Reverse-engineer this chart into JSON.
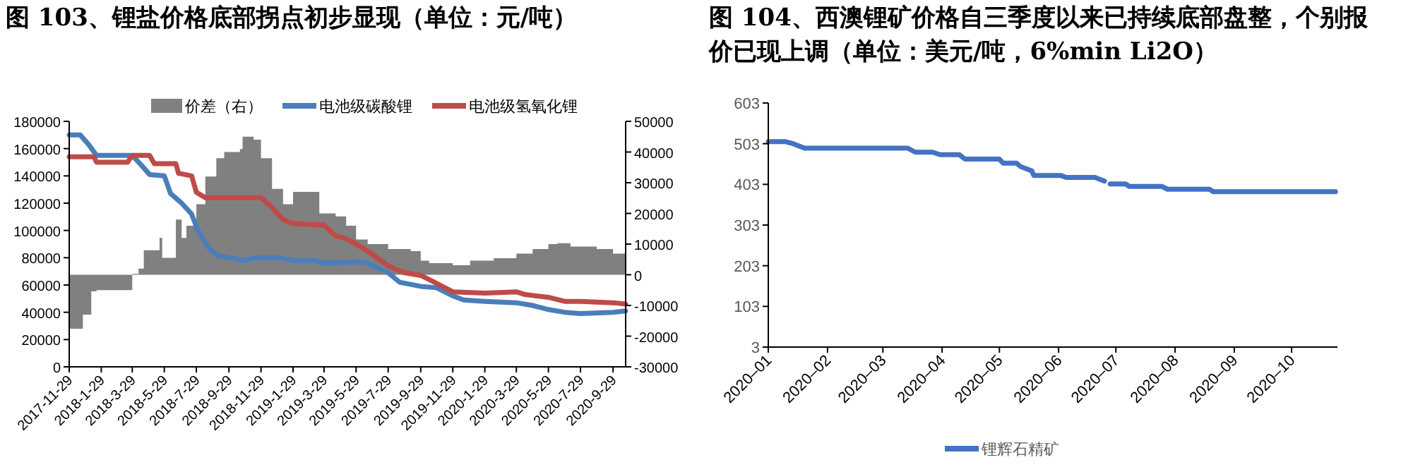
{
  "chart_data": [
    {
      "type": "line",
      "title": "图 103、锂盐价格底部拐点初步显现（单位：元/吨）",
      "legend": "top",
      "xlim": [
        "2017-11-29",
        "2020-10-23"
      ],
      "xticks": [
        {
          "value": "2017-11-29",
          "label": "2017-11-29"
        },
        {
          "value": "2018-01-29",
          "label": "2018-1-29"
        },
        {
          "value": "2018-03-29",
          "label": "2018-3-29"
        },
        {
          "value": "2018-05-29",
          "label": "2018-5-29"
        },
        {
          "value": "2018-07-29",
          "label": "2018-7-29"
        },
        {
          "value": "2018-09-29",
          "label": "2018-9-29"
        },
        {
          "value": "2018-11-29",
          "label": "2018-11-29"
        },
        {
          "value": "2019-01-29",
          "label": "2019-1-29"
        },
        {
          "value": "2019-03-29",
          "label": "2019-3-29"
        },
        {
          "value": "2019-05-29",
          "label": "2019-5-29"
        },
        {
          "value": "2019-07-29",
          "label": "2019-7-29"
        },
        {
          "value": "2019-09-29",
          "label": "2019-9-29"
        },
        {
          "value": "2019-11-29",
          "label": "2019-11-29"
        },
        {
          "value": "2020-01-29",
          "label": "2020-1-29"
        },
        {
          "value": "2020-03-29",
          "label": "2020-3-29"
        },
        {
          "value": "2020-05-29",
          "label": "2020-5-29"
        },
        {
          "value": "2020-07-29",
          "label": "2020-7-29"
        },
        {
          "value": "2020-09-29",
          "label": "2020-9-29"
        }
      ],
      "ylim": [
        0,
        180000
      ],
      "yticks": [
        0,
        20000,
        40000,
        60000,
        80000,
        100000,
        120000,
        140000,
        160000,
        180000
      ],
      "y2lim": [
        -30000,
        50000
      ],
      "y2ticks": [
        -30000,
        -20000,
        -10000,
        0,
        10000,
        20000,
        30000,
        40000,
        50000
      ],
      "series": [
        {
          "name": "价差（右）",
          "type": "area",
          "axis": "y2",
          "color": "#808080",
          "x": [
            "2017-11-29",
            "2017-12-10",
            "2017-12-25",
            "2018-01-10",
            "2018-01-20",
            "2018-03-28",
            "2018-03-29",
            "2018-04-10",
            "2018-04-20",
            "2018-05-20",
            "2018-05-25",
            "2018-06-10",
            "2018-06-20",
            "2018-07-01",
            "2018-07-10",
            "2018-07-29",
            "2018-08-15",
            "2018-09-05",
            "2018-09-20",
            "2018-10-20",
            "2018-10-25",
            "2018-11-15",
            "2018-11-29",
            "2018-12-20",
            "2019-01-10",
            "2019-01-29",
            "2019-03-10",
            "2019-03-20",
            "2019-04-20",
            "2019-05-10",
            "2019-05-29",
            "2019-06-20",
            "2019-07-29",
            "2019-08-29",
            "2019-09-10",
            "2019-09-29",
            "2019-10-15",
            "2019-11-29",
            "2020-01-01",
            "2020-02-15",
            "2020-03-29",
            "2020-04-29",
            "2020-05-29",
            "2020-06-15",
            "2020-07-10",
            "2020-08-29",
            "2020-09-29",
            "2020-10-23"
          ],
          "values": [
            -17600,
            -17600,
            -13000,
            -5400,
            -5000,
            -5000,
            300,
            2000,
            8000,
            12000,
            5500,
            5500,
            18000,
            12000,
            16000,
            23000,
            32000,
            38000,
            40000,
            41000,
            45000,
            44000,
            38000,
            28000,
            23000,
            27000,
            27000,
            20000,
            19000,
            16000,
            11500,
            10000,
            8400,
            8400,
            7700,
            4600,
            3800,
            3100,
            4600,
            5400,
            6900,
            8400,
            10000,
            10300,
            9200,
            8400,
            6900,
            5700
          ]
        },
        {
          "name": "电池级碳酸锂",
          "type": "line",
          "color": "#4a7ebb",
          "x": [
            "2017-11-29",
            "2017-12-20",
            "2018-01-05",
            "2018-01-20",
            "2018-03-29",
            "2018-04-15",
            "2018-05-01",
            "2018-05-29",
            "2018-06-10",
            "2018-07-01",
            "2018-07-20",
            "2018-08-01",
            "2018-08-20",
            "2018-09-05",
            "2018-10-01",
            "2018-10-30",
            "2018-11-15",
            "2019-01-01",
            "2019-02-01",
            "2019-03-10",
            "2019-03-29",
            "2019-05-29",
            "2019-06-20",
            "2019-07-29",
            "2019-08-20",
            "2019-09-29",
            "2019-10-29",
            "2019-11-29",
            "2019-12-20",
            "2020-01-29",
            "2020-03-29",
            "2020-04-29",
            "2020-05-29",
            "2020-06-29",
            "2020-07-29",
            "2020-09-29",
            "2020-10-23"
          ],
          "values": [
            170000,
            170000,
            163000,
            155000,
            155000,
            148000,
            141000,
            140000,
            127000,
            120000,
            112000,
            100000,
            88000,
            82000,
            80000,
            78000,
            80000,
            80000,
            78000,
            78000,
            76000,
            77000,
            76000,
            69000,
            62000,
            59000,
            58000,
            52000,
            49000,
            48000,
            47000,
            45000,
            42000,
            40000,
            39000,
            40000,
            41000
          ]
        },
        {
          "name": "电池级氢氧化锂",
          "type": "line",
          "color": "#be4b48",
          "x": [
            "2017-11-29",
            "2018-01-15",
            "2018-01-20",
            "2018-03-20",
            "2018-03-29",
            "2018-05-01",
            "2018-05-10",
            "2018-06-20",
            "2018-06-25",
            "2018-07-20",
            "2018-07-29",
            "2018-08-15",
            "2018-11-29",
            "2018-12-20",
            "2019-01-10",
            "2019-01-29",
            "2019-03-29",
            "2019-04-20",
            "2019-05-10",
            "2019-05-29",
            "2019-06-20",
            "2019-07-29",
            "2019-08-29",
            "2019-09-29",
            "2019-10-20",
            "2019-11-29",
            "2020-01-29",
            "2020-03-29",
            "2020-04-15",
            "2020-05-29",
            "2020-06-29",
            "2020-07-29",
            "2020-09-29",
            "2020-10-23"
          ],
          "values": [
            154000,
            154000,
            150000,
            150000,
            155000,
            155000,
            149000,
            149000,
            142000,
            140000,
            128000,
            124000,
            124000,
            117000,
            108000,
            105000,
            104000,
            96000,
            94000,
            90000,
            85000,
            74000,
            69000,
            67000,
            63000,
            55000,
            54000,
            55000,
            53000,
            51000,
            48000,
            48000,
            47000,
            46000
          ]
        }
      ]
    },
    {
      "type": "line",
      "title": "图 104、西澳锂矿价格自三季度以来已持续底部盘整，个别报价已现上调（单位：美元/吨，6%min Li2O）",
      "legend": "bottom",
      "xlim": [
        "2020-01-01",
        "2020-10-25"
      ],
      "xticks": [
        {
          "value": "2020-01",
          "label": "2020–01"
        },
        {
          "value": "2020-02",
          "label": "2020–02"
        },
        {
          "value": "2020-03",
          "label": "2020–03"
        },
        {
          "value": "2020-04",
          "label": "2020–04"
        },
        {
          "value": "2020-05",
          "label": "2020–05"
        },
        {
          "value": "2020-06",
          "label": "2020–06"
        },
        {
          "value": "2020-07",
          "label": "2020–07"
        },
        {
          "value": "2020-08",
          "label": "2020–08"
        },
        {
          "value": "2020-09",
          "label": "2020–09"
        },
        {
          "value": "2020-10",
          "label": "2020–10"
        }
      ],
      "ylim": [
        3,
        603
      ],
      "yticks": [
        3,
        103,
        203,
        303,
        403,
        503,
        603
      ],
      "series": [
        {
          "name": "锂辉石精矿",
          "color": "#4472c4",
          "x": [
            "2020-01-01",
            "2020-01-10",
            "2020-01-14",
            "2020-01-20",
            "2020-03-14",
            "2020-03-18",
            "2020-03-27",
            "2020-03-31",
            "2020-04-10",
            "2020-04-13",
            "2020-05-01",
            "2020-05-03",
            "2020-05-10",
            "2020-05-12",
            "2020-05-18",
            "2020-05-19",
            "2020-06-02",
            "2020-06-05",
            "2020-06-20",
            "2020-06-25",
            "2020-06-26",
            "2020-06-28",
            "2020-07-06",
            "2020-07-08",
            "2020-07-25",
            "2020-07-28",
            "2020-08-19",
            "2020-08-21",
            "2020-10-24"
          ],
          "values": [
            508,
            508,
            503,
            492,
            492,
            482,
            482,
            476,
            476,
            465,
            465,
            455,
            455,
            447,
            436,
            425,
            425,
            420,
            420,
            411,
            null,
            404,
            404,
            398,
            398,
            391,
            391,
            385,
            385
          ]
        }
      ]
    }
  ]
}
